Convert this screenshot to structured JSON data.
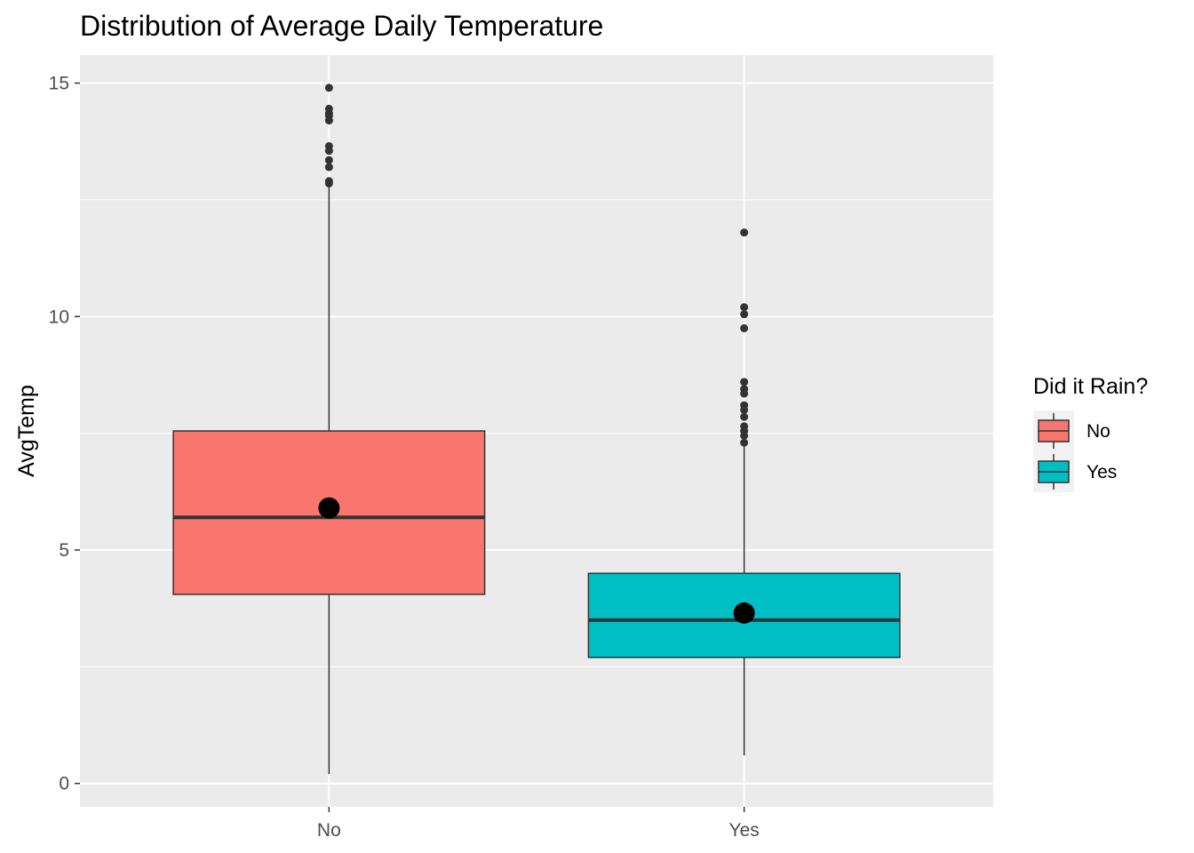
{
  "chart_data": {
    "type": "box",
    "title": "Distribution of Average Daily Temperature",
    "xlabel": "",
    "ylabel": "AvgTemp",
    "categories": [
      "No",
      "Yes"
    ],
    "ylim": [
      -0.5,
      15.6
    ],
    "yticks": [
      0,
      5,
      10,
      15
    ],
    "grid": true,
    "legend": {
      "title": "Did it Rain?",
      "position": "right",
      "entries": [
        {
          "label": "No",
          "color": "#F8766D"
        },
        {
          "label": "Yes",
          "color": "#00BFC4"
        }
      ]
    },
    "boxes": [
      {
        "category": "No",
        "color": "#F8766D",
        "min": 0.2,
        "q1": 4.05,
        "median": 5.7,
        "q3": 7.55,
        "max": 12.85,
        "mean": 5.9,
        "outliers": [
          12.85,
          12.9,
          13.2,
          13.35,
          13.55,
          13.65,
          14.2,
          14.3,
          14.35,
          14.45,
          14.9
        ]
      },
      {
        "category": "Yes",
        "color": "#00BFC4",
        "min": 0.6,
        "q1": 2.7,
        "median": 3.5,
        "q3": 4.5,
        "max": 7.25,
        "mean": 3.65,
        "outliers": [
          7.3,
          7.45,
          7.55,
          7.65,
          7.85,
          8.0,
          8.1,
          8.35,
          8.45,
          8.6,
          9.75,
          10.05,
          10.2,
          11.8
        ]
      }
    ]
  }
}
